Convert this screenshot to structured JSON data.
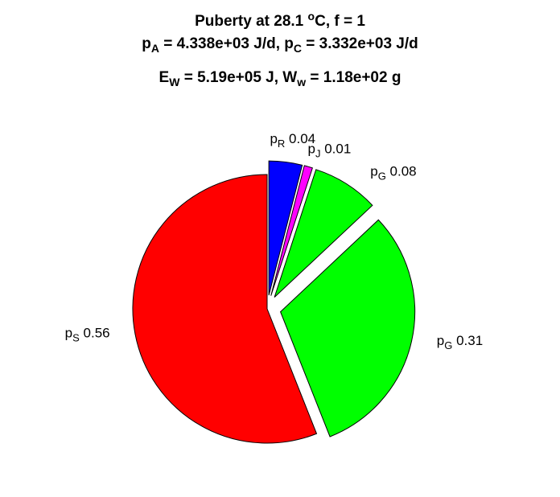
{
  "title": {
    "line1": {
      "pre": "Puberty at 28.1 ",
      "sup": "o",
      "post": "C, f = 1"
    },
    "line2": {
      "a_base": "p",
      "a_sub": "A",
      "a_rest": " = 4.338e+03 J/d,  ",
      "c_base": "p",
      "c_sub": "C",
      "c_rest": " = 3.332e+03 J/d"
    },
    "line3": {
      "e_base": "E",
      "e_sub": "W",
      "e_rest": " = 5.19e+05 J, ",
      "w_base": "W",
      "w_sub": "w",
      "w_rest": " = 1.18e+02 g"
    }
  },
  "chart_data": {
    "type": "pie",
    "slices": [
      {
        "base": "p",
        "sub": "R",
        "value_label": "0.04",
        "value": 0.04,
        "color": "#0000ff",
        "exploded": true
      },
      {
        "base": "p",
        "sub": "J",
        "value_label": "0.01",
        "value": 0.01,
        "color": "#ff00ff",
        "exploded": true
      },
      {
        "base": "p",
        "sub": "G",
        "value_label": "0.08",
        "value": 0.08,
        "color": "#00ff00",
        "exploded": true
      },
      {
        "base": "p",
        "sub": "G",
        "value_label": "0.31",
        "value": 0.31,
        "color": "#00ff00",
        "exploded": true
      },
      {
        "base": "p",
        "sub": "S",
        "value_label": "0.56",
        "value": 0.56,
        "color": "#ff0000",
        "exploded": false
      }
    ]
  }
}
